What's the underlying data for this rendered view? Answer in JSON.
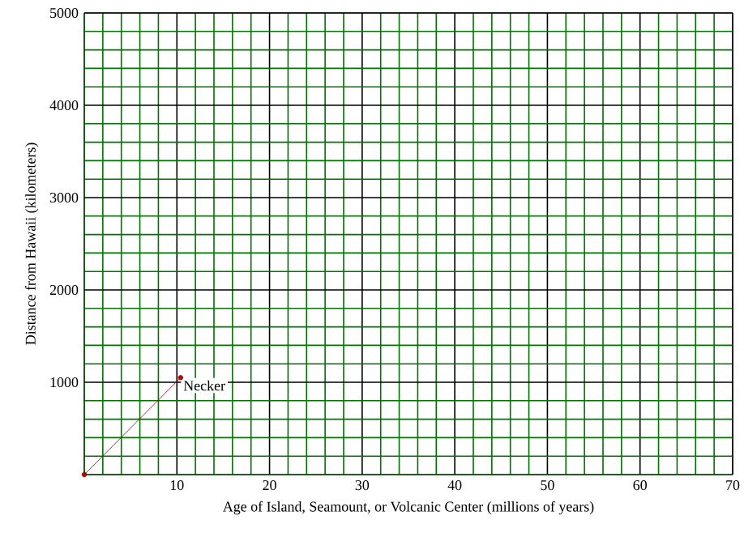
{
  "chart_data": {
    "type": "line",
    "xlabel": "Age of Island, Seamount, or Volcanic Center (millions of years)",
    "ylabel": "Distance from Hawaii (kilometers)",
    "x": [
      0,
      10.4
    ],
    "series": [
      {
        "color": "#8b0000",
        "values": [
          0,
          1050
        ]
      }
    ],
    "marker": "circle",
    "annotations": [
      {
        "text": "Necker",
        "x": 10.4,
        "y": 1050
      }
    ],
    "xlim": [
      0,
      70
    ],
    "ylim": [
      0,
      5000
    ],
    "xticks": [
      {
        "value": 0,
        "label": null
      },
      {
        "value": 2,
        "label": null
      },
      {
        "value": 4,
        "label": null
      },
      {
        "value": 6,
        "label": null
      },
      {
        "value": 8,
        "label": null
      },
      10,
      {
        "value": 12,
        "label": null
      },
      {
        "value": 14,
        "label": null
      },
      {
        "value": 16,
        "label": null
      },
      {
        "value": 18,
        "label": null
      },
      20,
      {
        "value": 22,
        "label": null
      },
      {
        "value": 24,
        "label": null
      },
      {
        "value": 26,
        "label": null
      },
      {
        "value": 28,
        "label": null
      },
      30,
      {
        "value": 32,
        "label": null
      },
      {
        "value": 34,
        "label": null
      },
      {
        "value": 36,
        "label": null
      },
      {
        "value": 38,
        "label": null
      },
      40,
      {
        "value": 42,
        "label": null
      },
      {
        "value": 44,
        "label": null
      },
      {
        "value": 46,
        "label": null
      },
      {
        "value": 48,
        "label": null
      },
      50,
      {
        "value": 52,
        "label": null
      },
      {
        "value": 54,
        "label": null
      },
      {
        "value": 56,
        "label": null
      },
      {
        "value": 58,
        "label": null
      },
      60,
      {
        "value": 62,
        "label": null
      },
      {
        "value": 64,
        "label": null
      },
      {
        "value": 66,
        "label": null
      },
      {
        "value": 68,
        "label": null
      },
      70
    ],
    "yticks": [
      {
        "value": 0,
        "label": null
      },
      {
        "value": 200,
        "label": null
      },
      {
        "value": 400,
        "label": null
      },
      {
        "value": 600,
        "label": null
      },
      {
        "value": 800,
        "label": null
      },
      1000,
      {
        "value": 1200,
        "label": null
      },
      {
        "value": 1400,
        "label": null
      },
      {
        "value": 1600,
        "label": null
      },
      {
        "value": 1800,
        "label": null
      },
      2000,
      {
        "value": 2200,
        "label": null
      },
      {
        "value": 2400,
        "label": null
      },
      {
        "value": 2600,
        "label": null
      },
      {
        "value": 2800,
        "label": null
      },
      3000,
      {
        "value": 3200,
        "label": null
      },
      {
        "value": 3400,
        "label": null
      },
      {
        "value": 3600,
        "label": null
      },
      {
        "value": 3800,
        "label": null
      },
      4000,
      {
        "value": 4200,
        "label": null
      },
      {
        "value": 4400,
        "label": null
      },
      {
        "value": 4600,
        "label": null
      },
      {
        "value": 4800,
        "label": null
      },
      5000
    ],
    "grid": true
  }
}
